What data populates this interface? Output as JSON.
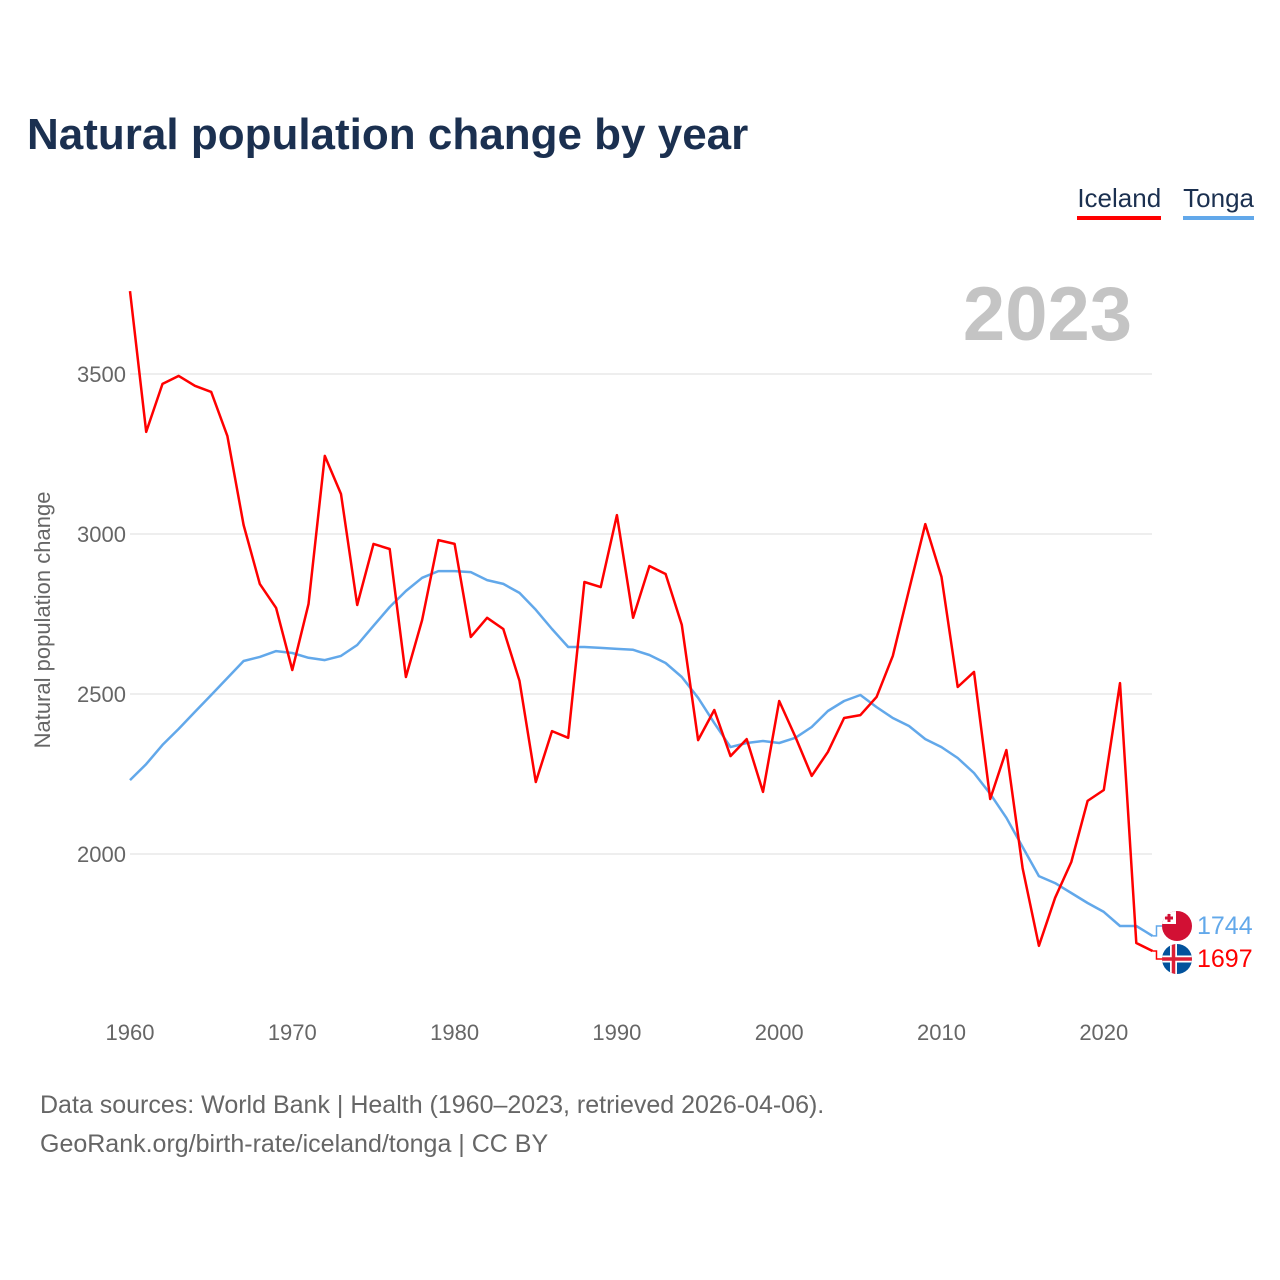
{
  "title": "Natural population change by year",
  "legend": [
    {
      "label": "Iceland",
      "color": "#ff0000"
    },
    {
      "label": "Tonga",
      "color": "#62a8ea"
    }
  ],
  "year_display": "2023",
  "footer": {
    "line1": "Data sources: World Bank | Health (1960–2023, retrieved 2026-04-06).",
    "line2": "GeoRank.org/birth-rate/iceland/tonga | CC BY"
  },
  "chart_data": {
    "type": "line",
    "title": "Natural population change by year",
    "xlabel": "",
    "ylabel": "Natural population change",
    "x_start": 1960,
    "x_end": 2023,
    "xlim": [
      1960,
      2023
    ],
    "ylim": [
      1600,
      3760
    ],
    "x_ticks": [
      1960,
      1970,
      1980,
      1990,
      2000,
      2010,
      2020
    ],
    "y_ticks": [
      2000,
      2500,
      3000,
      3500
    ],
    "grid": true,
    "legend_position": "top-right",
    "series": [
      {
        "name": "Iceland",
        "color": "#ff0000",
        "end_label": "1697",
        "flag": "iceland-flag",
        "values": [
          3759,
          3319,
          3469,
          3494,
          3463,
          3444,
          3306,
          3028,
          2844,
          2769,
          2575,
          2781,
          3244,
          3125,
          2778,
          2969,
          2953,
          2553,
          2731,
          2981,
          2969,
          2678,
          2738,
          2703,
          2541,
          2225,
          2384,
          2363,
          2850,
          2834,
          3059,
          2738,
          2900,
          2875,
          2716,
          2356,
          2450,
          2306,
          2359,
          2194,
          2478,
          2366,
          2244,
          2319,
          2425,
          2434,
          2491,
          2619,
          2825,
          3031,
          2866,
          2522,
          2569,
          2172,
          2325,
          1956,
          1713,
          1863,
          1975,
          2166,
          2200,
          2534,
          1722,
          1697
        ]
      },
      {
        "name": "Tonga",
        "color": "#62a8ea",
        "end_label": "1744",
        "flag": "tonga-flag",
        "values": [
          2231,
          2281,
          2341,
          2391,
          2444,
          2497,
          2550,
          2603,
          2616,
          2634,
          2628,
          2613,
          2606,
          2619,
          2653,
          2713,
          2772,
          2822,
          2863,
          2884,
          2884,
          2881,
          2856,
          2844,
          2816,
          2763,
          2703,
          2647,
          2647,
          2644,
          2641,
          2638,
          2622,
          2597,
          2553,
          2488,
          2409,
          2334,
          2347,
          2353,
          2347,
          2363,
          2397,
          2447,
          2478,
          2497,
          2459,
          2425,
          2400,
          2359,
          2334,
          2300,
          2253,
          2188,
          2113,
          2022,
          1931,
          1909,
          1878,
          1847,
          1819,
          1775,
          1775,
          1744
        ]
      }
    ]
  }
}
